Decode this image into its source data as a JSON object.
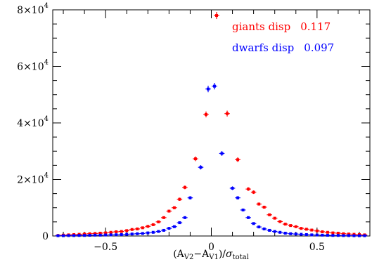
{
  "chart_data": {
    "type": "scatter",
    "title": "",
    "xlabel": "(A_V2 − A_V1)/σ_total",
    "ylabel": "",
    "xlim": [
      -0.75,
      0.75
    ],
    "ylim": [
      0,
      80000
    ],
    "y_tick_exponent": "4",
    "x_ticks": [
      {
        "value": -0.5,
        "label": "−0.5"
      },
      {
        "value": 0,
        "label": "0"
      },
      {
        "value": 0.5,
        "label": "0.5"
      }
    ],
    "y_ticks": [
      {
        "value": 0,
        "label": "0"
      },
      {
        "value": 20000,
        "mantissa": "2×10"
      },
      {
        "value": 40000,
        "mantissa": "4×10"
      },
      {
        "value": 60000,
        "mantissa": "6×10"
      },
      {
        "value": 80000,
        "mantissa": "8×10"
      }
    ],
    "x_error": 0.0125,
    "series": [
      {
        "name": "giants disp",
        "stat": "0.117",
        "color": "#ff0000",
        "points": [
          [
            -0.725,
            200
          ],
          [
            -0.7,
            300
          ],
          [
            -0.675,
            400
          ],
          [
            -0.65,
            500
          ],
          [
            -0.625,
            600
          ],
          [
            -0.6,
            700
          ],
          [
            -0.575,
            800
          ],
          [
            -0.55,
            900
          ],
          [
            -0.525,
            1000
          ],
          [
            -0.5,
            1100
          ],
          [
            -0.475,
            1300
          ],
          [
            -0.45,
            1500
          ],
          [
            -0.425,
            1600
          ],
          [
            -0.4,
            1900
          ],
          [
            -0.375,
            2300
          ],
          [
            -0.35,
            2500
          ],
          [
            -0.325,
            2900
          ],
          [
            -0.3,
            3400
          ],
          [
            -0.275,
            4000
          ],
          [
            -0.25,
            5000
          ],
          [
            -0.225,
            6500
          ],
          [
            -0.2,
            8800
          ],
          [
            -0.175,
            10000
          ],
          [
            -0.15,
            13000
          ],
          [
            -0.125,
            17200
          ],
          [
            -0.075,
            27300
          ],
          [
            -0.025,
            43000
          ],
          [
            0.025,
            78000
          ],
          [
            0.075,
            43300
          ],
          [
            0.125,
            27000
          ],
          [
            0.175,
            16600
          ],
          [
            0.2,
            15500
          ],
          [
            0.225,
            11300
          ],
          [
            0.25,
            10200
          ],
          [
            0.275,
            7500
          ],
          [
            0.3,
            6300
          ],
          [
            0.325,
            5100
          ],
          [
            0.35,
            4200
          ],
          [
            0.375,
            3700
          ],
          [
            0.4,
            3300
          ],
          [
            0.425,
            2700
          ],
          [
            0.45,
            2400
          ],
          [
            0.475,
            2100
          ],
          [
            0.5,
            1800
          ],
          [
            0.525,
            1500
          ],
          [
            0.55,
            1300
          ],
          [
            0.575,
            1100
          ],
          [
            0.6,
            1000
          ],
          [
            0.625,
            800
          ],
          [
            0.65,
            700
          ],
          [
            0.675,
            600
          ],
          [
            0.7,
            500
          ],
          [
            0.725,
            400
          ]
        ]
      },
      {
        "name": "dwarfs disp",
        "stat": "0.097",
        "color": "#0000ff",
        "points": [
          [
            -0.725,
            100
          ],
          [
            -0.7,
            100
          ],
          [
            -0.675,
            150
          ],
          [
            -0.65,
            150
          ],
          [
            -0.625,
            200
          ],
          [
            -0.6,
            200
          ],
          [
            -0.575,
            250
          ],
          [
            -0.55,
            300
          ],
          [
            -0.525,
            300
          ],
          [
            -0.5,
            350
          ],
          [
            -0.475,
            400
          ],
          [
            -0.45,
            450
          ],
          [
            -0.425,
            500
          ],
          [
            -0.4,
            600
          ],
          [
            -0.375,
            700
          ],
          [
            -0.35,
            800
          ],
          [
            -0.325,
            900
          ],
          [
            -0.3,
            1100
          ],
          [
            -0.275,
            1300
          ],
          [
            -0.25,
            1600
          ],
          [
            -0.225,
            2000
          ],
          [
            -0.2,
            2700
          ],
          [
            -0.175,
            3300
          ],
          [
            -0.15,
            4700
          ],
          [
            -0.125,
            6500
          ],
          [
            -0.1,
            13500
          ],
          [
            -0.05,
            24300
          ],
          [
            -0.015,
            52000
          ],
          [
            0.015,
            53000
          ],
          [
            0.05,
            29200
          ],
          [
            0.1,
            16900
          ],
          [
            0.125,
            13500
          ],
          [
            0.15,
            9200
          ],
          [
            0.175,
            6500
          ],
          [
            0.2,
            4400
          ],
          [
            0.225,
            3200
          ],
          [
            0.25,
            2500
          ],
          [
            0.275,
            2000
          ],
          [
            0.3,
            1600
          ],
          [
            0.325,
            1300
          ],
          [
            0.35,
            1000
          ],
          [
            0.375,
            800
          ],
          [
            0.4,
            700
          ],
          [
            0.425,
            600
          ],
          [
            0.45,
            500
          ],
          [
            0.475,
            400
          ],
          [
            0.5,
            350
          ],
          [
            0.525,
            300
          ],
          [
            0.55,
            250
          ],
          [
            0.575,
            200
          ],
          [
            0.6,
            200
          ],
          [
            0.625,
            150
          ],
          [
            0.65,
            150
          ],
          [
            0.675,
            100
          ],
          [
            0.7,
            100
          ],
          [
            0.725,
            100
          ]
        ]
      }
    ]
  }
}
